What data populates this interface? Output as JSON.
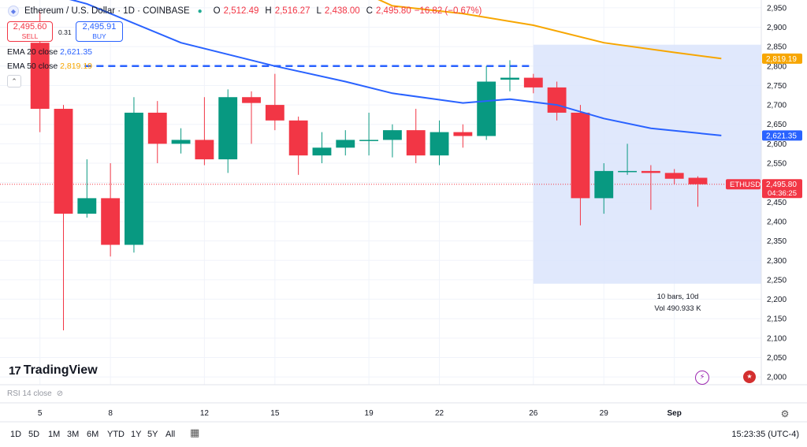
{
  "header": {
    "symbol": "Ethereum / U.S. Dollar · 1D · COINBASE",
    "o_label": "O",
    "o": "2,512.49",
    "h_label": "H",
    "h": "2,516.27",
    "l_label": "L",
    "l": "2,438.00",
    "c_label": "C",
    "c": "2,495.80",
    "change": "−16.82 (−0.67%)"
  },
  "trade": {
    "sell_price": "2,495.60",
    "sell_label": "SELL",
    "spread": "0.31",
    "buy_price": "2,495.91",
    "buy_label": "BUY"
  },
  "indicators": {
    "ema20_label": "EMA 20 close",
    "ema20_value": "2,621.35",
    "ema50_label": "EMA 50 close",
    "ema50_value": "2,819.19"
  },
  "range_tool": {
    "bars": "10 bars, 10d",
    "vol": "Vol 490.933 K"
  },
  "logo": "TradingView",
  "rsi_label": "RSI 14 close",
  "timeframes": [
    "1D",
    "5D",
    "1M",
    "3M",
    "6M",
    "YTD",
    "1Y",
    "5Y",
    "All"
  ],
  "clock": "15:23:35 (UTC-4)",
  "colors": {
    "up": "#089981",
    "down": "#f23645",
    "ema20": "#2962ff",
    "ema50": "#f7a600",
    "range_fill": "#dbe4fb"
  },
  "chart_data": {
    "type": "candlestick",
    "y_range": [
      1980,
      2970
    ],
    "y_ticks": [
      2000,
      2050,
      2100,
      2150,
      2200,
      2250,
      2300,
      2350,
      2400,
      2450,
      2500,
      2550,
      2600,
      2650,
      2700,
      2750,
      2800,
      2850,
      2900,
      2950
    ],
    "x_labels": [
      {
        "label": "5",
        "index": 0
      },
      {
        "label": "8",
        "index": 3
      },
      {
        "label": "12",
        "index": 7
      },
      {
        "label": "15",
        "index": 10
      },
      {
        "label": "19",
        "index": 14
      },
      {
        "label": "22",
        "index": 17
      },
      {
        "label": "26",
        "index": 21
      },
      {
        "label": "29",
        "index": 24
      },
      {
        "label": "Sep",
        "index": 27
      }
    ],
    "x_domain": [
      -1.7,
      30.7
    ],
    "candles": [
      {
        "o": 2860,
        "h": 2940,
        "l": 2630,
        "c": 2690
      },
      {
        "o": 2690,
        "h": 2700,
        "l": 2120,
        "c": 2420
      },
      {
        "o": 2420,
        "h": 2560,
        "l": 2410,
        "c": 2460
      },
      {
        "o": 2460,
        "h": 2550,
        "l": 2310,
        "c": 2340
      },
      {
        "o": 2340,
        "h": 2720,
        "l": 2320,
        "c": 2680
      },
      {
        "o": 2680,
        "h": 2710,
        "l": 2550,
        "c": 2600
      },
      {
        "o": 2600,
        "h": 2640,
        "l": 2575,
        "c": 2610
      },
      {
        "o": 2610,
        "h": 2720,
        "l": 2545,
        "c": 2560
      },
      {
        "o": 2560,
        "h": 2740,
        "l": 2525,
        "c": 2720
      },
      {
        "o": 2720,
        "h": 2735,
        "l": 2600,
        "c": 2705
      },
      {
        "o": 2700,
        "h": 2780,
        "l": 2635,
        "c": 2660
      },
      {
        "o": 2660,
        "h": 2670,
        "l": 2520,
        "c": 2570
      },
      {
        "o": 2570,
        "h": 2630,
        "l": 2550,
        "c": 2590
      },
      {
        "o": 2590,
        "h": 2635,
        "l": 2570,
        "c": 2610
      },
      {
        "o": 2610,
        "h": 2680,
        "l": 2570,
        "c": 2610
      },
      {
        "o": 2610,
        "h": 2650,
        "l": 2565,
        "c": 2635
      },
      {
        "o": 2635,
        "h": 2690,
        "l": 2550,
        "c": 2570
      },
      {
        "o": 2570,
        "h": 2660,
        "l": 2545,
        "c": 2630
      },
      {
        "o": 2630,
        "h": 2650,
        "l": 2590,
        "c": 2620
      },
      {
        "o": 2620,
        "h": 2800,
        "l": 2610,
        "c": 2760
      },
      {
        "o": 2765,
        "h": 2815,
        "l": 2735,
        "c": 2770
      },
      {
        "o": 2770,
        "h": 2780,
        "l": 2730,
        "c": 2745
      },
      {
        "o": 2745,
        "h": 2760,
        "l": 2660,
        "c": 2680
      },
      {
        "o": 2680,
        "h": 2700,
        "l": 2390,
        "c": 2460
      },
      {
        "o": 2460,
        "h": 2550,
        "l": 2420,
        "c": 2530
      },
      {
        "o": 2530,
        "h": 2600,
        "l": 2520,
        "c": 2530
      },
      {
        "o": 2530,
        "h": 2545,
        "l": 2430,
        "c": 2525
      },
      {
        "o": 2525,
        "h": 2535,
        "l": 2495,
        "c": 2510
      },
      {
        "o": 2512.49,
        "h": 2516.27,
        "l": 2438.0,
        "c": 2495.8
      }
    ],
    "ema20": [
      {
        "i": -0.5,
        "v": 3000
      },
      {
        "i": 2,
        "v": 2960
      },
      {
        "i": 6,
        "v": 2860
      },
      {
        "i": 10,
        "v": 2800
      },
      {
        "i": 13,
        "v": 2760
      },
      {
        "i": 15,
        "v": 2730
      },
      {
        "i": 18,
        "v": 2705
      },
      {
        "i": 20,
        "v": 2715
      },
      {
        "i": 22,
        "v": 2700
      },
      {
        "i": 24,
        "v": 2665
      },
      {
        "i": 26,
        "v": 2640
      },
      {
        "i": 29,
        "v": 2621.35
      }
    ],
    "ema50": [
      {
        "i": 13,
        "v": 3010
      },
      {
        "i": 15,
        "v": 2955
      },
      {
        "i": 18,
        "v": 2935
      },
      {
        "i": 21,
        "v": 2905
      },
      {
        "i": 24,
        "v": 2860
      },
      {
        "i": 27,
        "v": 2835
      },
      {
        "i": 29,
        "v": 2819.19
      }
    ],
    "dashed_level": {
      "value": 2800,
      "from_index": 1.9,
      "to_index": 21
    },
    "range_box": {
      "from_index": 21,
      "to_index": 30.7,
      "low": 2240,
      "high": 2855
    },
    "price_labels": [
      {
        "value": 2819.19,
        "text": "2,819.19",
        "color": "#f7a600"
      },
      {
        "value": 2621.35,
        "text": "2,621.35",
        "color": "#2962ff"
      },
      {
        "value": 2495.8,
        "text": "2,495.80",
        "sub": "04:36:25",
        "color": "#f23645"
      }
    ],
    "ticker_tag": "ETHUSD"
  }
}
